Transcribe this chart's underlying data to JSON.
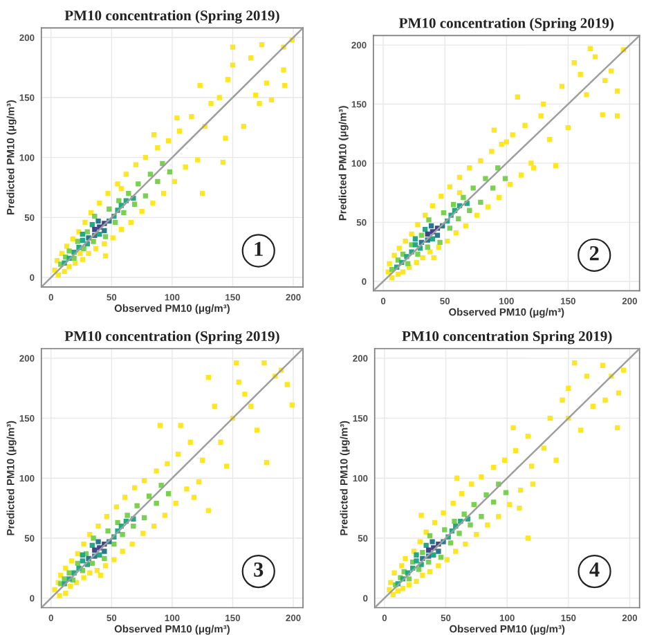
{
  "chart_data": [
    {
      "type": "scatter",
      "title": "PM10 concentration (Spring 2019)",
      "xlabel": "Observed PM10 (μg/m³)",
      "ylabel": "Predicted PM10 (μg/m³)",
      "xlim": [
        -8,
        208
      ],
      "ylim": [
        -8,
        208
      ],
      "xticks": [
        0,
        50,
        100,
        150,
        200
      ],
      "yticks": [
        0,
        50,
        100,
        150,
        200
      ],
      "grid": true,
      "marker": "square",
      "annotations": [
        "1"
      ],
      "series": [
        {
          "color": "#fde725",
          "x": [
            3,
            5,
            6,
            9,
            11,
            13,
            15,
            18,
            20,
            23,
            26,
            28,
            31,
            33,
            37,
            40,
            44,
            47,
            51,
            55,
            58,
            62,
            66,
            70,
            75,
            78,
            84,
            88,
            93,
            97,
            102,
            106,
            111,
            116,
            121,
            125,
            127,
            132,
            139,
            142,
            144,
            146,
            150,
            150,
            159,
            165,
            169,
            172,
            174,
            178,
            182,
            192,
            193,
            192,
            199,
            123,
            104,
            24,
            85,
            58,
            45
          ],
          "values": [
            6,
            14,
            2,
            20,
            5,
            26,
            9,
            32,
            12,
            38,
            15,
            46,
            20,
            54,
            24,
            62,
            28,
            70,
            33,
            78,
            40,
            86,
            46,
            94,
            55,
            100,
            62,
            108,
            70,
            114,
            80,
            122,
            92,
            134,
            98,
            70,
            126,
            145,
            150,
            96,
            116,
            165,
            177,
            192,
            126,
            183,
            152,
            145,
            194,
            162,
            148,
            173,
            160,
            192,
            198,
            160,
            133,
            20,
            119,
            74,
            18
          ]
        },
        {
          "color": "#7ad151",
          "x": [
            8,
            12,
            15,
            19,
            22,
            27,
            30,
            35,
            36,
            45,
            48,
            53,
            56,
            60,
            64,
            69,
            72,
            78,
            82,
            88,
            92,
            98
          ],
          "values": [
            11,
            17,
            22,
            16,
            30,
            24,
            38,
            30,
            51,
            34,
            57,
            46,
            64,
            54,
            70,
            61,
            78,
            68,
            86,
            80,
            95,
            88
          ]
        },
        {
          "color": "#22a884",
          "x": [
            11,
            15,
            19,
            23,
            26,
            30,
            26,
            34,
            40,
            52,
            55,
            58,
            62,
            68
          ],
          "values": [
            12,
            16,
            21,
            25,
            31,
            28,
            36,
            44,
            36,
            51,
            56,
            60,
            64,
            66
          ]
        },
        {
          "color": "#2a788e",
          "x": [
            31,
            36,
            39,
            44,
            48
          ],
          "values": [
            33,
            35,
            47,
            39,
            47
          ]
        },
        {
          "color": "#414487",
          "x": [
            36,
            40,
            44
          ],
          "values": [
            40,
            42,
            45
          ]
        },
        {
          "type": "line",
          "color": "#9e9e9e",
          "marker": "none",
          "line_style": "solid",
          "x": [
            -8,
            208
          ],
          "values": [
            -8,
            208
          ]
        }
      ]
    },
    {
      "type": "scatter",
      "title": "PM10 concentration (Spring 2019)",
      "xlabel": "Observed PM10 (μg/m³)",
      "ylabel": "Predicted PM10 (μg/m³)",
      "xlim": [
        -8,
        208
      ],
      "ylim": [
        -8,
        208
      ],
      "xticks": [
        0,
        50,
        100,
        150,
        200
      ],
      "yticks": [
        0,
        50,
        100,
        150,
        200
      ],
      "grid": true,
      "marker": "square",
      "annotations": [
        "2"
      ],
      "series": [
        {
          "color": "#fde725",
          "x": [
            4,
            5,
            7,
            9,
            12,
            13,
            16,
            18,
            21,
            23,
            27,
            28,
            32,
            34,
            38,
            40,
            45,
            47,
            52,
            54,
            59,
            62,
            67,
            70,
            76,
            79,
            85,
            88,
            94,
            96,
            103,
            105,
            112,
            115,
            122,
            168,
            190,
            190,
            178,
            109,
            90,
            41,
            155,
            145,
            160,
            185,
            195,
            172,
            130,
            120,
            135,
            140,
            150,
            165,
            180,
            128,
            100,
            62
          ],
          "values": [
            8,
            15,
            3,
            22,
            6,
            28,
            8,
            34,
            12,
            40,
            16,
            48,
            20,
            56,
            25,
            64,
            29,
            72,
            34,
            80,
            41,
            88,
            47,
            96,
            56,
            102,
            63,
            110,
            71,
            116,
            82,
            124,
            90,
            132,
            96,
            197,
            161,
            140,
            141,
            156,
            128,
            20,
            185,
            165,
            175,
            178,
            196,
            190,
            150,
            100,
            120,
            98,
            130,
            158,
            170,
            140,
            118,
            75
          ]
        },
        {
          "color": "#7ad151",
          "x": [
            7,
            12,
            16,
            20,
            23,
            28,
            31,
            36,
            37,
            46,
            49,
            54,
            57,
            61,
            65,
            70,
            73,
            79,
            83,
            89,
            93,
            99
          ],
          "values": [
            10,
            18,
            23,
            15,
            31,
            23,
            39,
            29,
            52,
            33,
            58,
            45,
            65,
            53,
            71,
            60,
            79,
            67,
            87,
            79,
            96,
            87
          ]
        },
        {
          "color": "#22a884",
          "x": [
            11,
            15,
            19,
            23,
            26,
            30,
            26,
            34,
            40,
            52,
            55,
            58,
            62,
            68
          ],
          "values": [
            12,
            16,
            21,
            25,
            31,
            28,
            36,
            44,
            36,
            51,
            56,
            60,
            64,
            66
          ]
        },
        {
          "color": "#2a788e",
          "x": [
            31,
            36,
            39,
            44,
            48
          ],
          "values": [
            33,
            35,
            47,
            39,
            47
          ]
        },
        {
          "color": "#414487",
          "x": [
            36,
            40,
            44
          ],
          "values": [
            40,
            42,
            45
          ]
        },
        {
          "type": "line",
          "color": "#9e9e9e",
          "marker": "none",
          "line_style": "solid",
          "x": [
            -8,
            208
          ],
          "values": [
            -8,
            208
          ]
        }
      ]
    },
    {
      "type": "scatter",
      "title": "PM10 concentration (Spring 2019)",
      "xlabel": "Observed PM10 (μg/m³)",
      "ylabel": "Predicted PM10 (μg/m³)",
      "xlim": [
        -8,
        208
      ],
      "ylim": [
        -8,
        208
      ],
      "xticks": [
        0,
        50,
        100,
        150,
        200
      ],
      "yticks": [
        0,
        50,
        100,
        150,
        200
      ],
      "grid": true,
      "marker": "square",
      "annotations": [
        "3"
      ],
      "series": [
        {
          "color": "#fde725",
          "x": [
            3,
            6,
            7,
            8,
            12,
            12,
            16,
            17,
            21,
            22,
            27,
            27,
            32,
            32,
            38,
            39,
            45,
            46,
            52,
            54,
            59,
            61,
            67,
            69,
            76,
            77,
            85,
            87,
            94,
            96,
            103,
            105,
            112,
            115,
            122,
            153,
            176,
            199,
            178,
            130,
            107,
            90,
            130,
            41,
            160,
            185,
            150,
            165,
            190,
            140,
            145,
            125,
            170,
            155,
            135,
            195,
            118
          ],
          "values": [
            7,
            13,
            2,
            19,
            4,
            25,
            10,
            31,
            13,
            37,
            17,
            45,
            21,
            53,
            23,
            60,
            27,
            68,
            32,
            76,
            39,
            84,
            45,
            92,
            54,
            98,
            60,
            106,
            69,
            112,
            79,
            120,
            91,
            130,
            97,
            196,
            196,
            161,
            113,
            184,
            144,
            144,
            73,
            19,
            170,
            185,
            150,
            160,
            190,
            130,
            110,
            115,
            140,
            180,
            160,
            178,
            84
          ]
        },
        {
          "color": "#7ad151",
          "x": [
            8,
            11,
            15,
            18,
            22,
            26,
            29,
            34,
            35,
            44,
            47,
            52,
            55,
            59,
            63,
            68,
            71,
            77,
            81,
            87,
            91,
            97
          ],
          "values": [
            12,
            16,
            21,
            15,
            29,
            23,
            37,
            29,
            50,
            33,
            56,
            45,
            63,
            53,
            69,
            60,
            77,
            67,
            85,
            79,
            94,
            87
          ]
        },
        {
          "color": "#22a884",
          "x": [
            11,
            15,
            19,
            23,
            26,
            30,
            26,
            34,
            40,
            52,
            55,
            58,
            62,
            68
          ],
          "values": [
            12,
            16,
            21,
            25,
            31,
            28,
            36,
            44,
            36,
            51,
            56,
            60,
            64,
            66
          ]
        },
        {
          "color": "#2a788e",
          "x": [
            31,
            36,
            39,
            44,
            48
          ],
          "values": [
            33,
            35,
            47,
            39,
            47
          ]
        },
        {
          "color": "#414487",
          "x": [
            36,
            40,
            44
          ],
          "values": [
            40,
            42,
            45
          ]
        },
        {
          "type": "line",
          "color": "#9e9e9e",
          "marker": "none",
          "line_style": "solid",
          "x": [
            -8,
            208
          ],
          "values": [
            -8,
            208
          ]
        }
      ]
    },
    {
      "type": "scatter",
      "title": "PM10 concentration Spring 2019)",
      "xlabel": "Observed PM10 (μg/m³)",
      "ylabel": "Predicted PM10 (μg/m³)",
      "xlim": [
        -8,
        208
      ],
      "ylim": [
        -8,
        208
      ],
      "xticks": [
        0,
        50,
        100,
        150,
        200
      ],
      "yticks": [
        0,
        50,
        100,
        150,
        200
      ],
      "grid": true,
      "marker": "square",
      "annotations": [
        "4"
      ],
      "series": [
        {
          "color": "#fde725",
          "x": [
            4,
            5,
            7,
            8,
            11,
            14,
            15,
            17,
            20,
            24,
            26,
            29,
            31,
            34,
            37,
            41,
            44,
            48,
            51,
            56,
            58,
            63,
            66,
            71,
            75,
            79,
            84,
            89,
            93,
            98,
            102,
            107,
            111,
            117,
            121,
            155,
            178,
            191,
            190,
            145,
            105,
            59,
            117,
            30,
            165,
            185,
            170,
            150,
            130,
            120,
            140,
            160,
            180,
            195,
            135,
            150,
            110
          ],
          "values": [
            7,
            13,
            3,
            21,
            6,
            27,
            8,
            33,
            11,
            39,
            14,
            47,
            19,
            55,
            22,
            63,
            27,
            71,
            32,
            79,
            39,
            87,
            45,
            95,
            53,
            101,
            61,
            109,
            68,
            115,
            78,
            123,
            90,
            135,
            95,
            196,
            194,
            171,
            142,
            165,
            142,
            100,
            50,
            69,
            185,
            185,
            160,
            150,
            125,
            110,
            115,
            140,
            165,
            190,
            150,
            175,
            75
          ]
        },
        {
          "color": "#7ad151",
          "x": [
            9,
            13,
            16,
            20,
            23,
            28,
            31,
            36,
            37,
            46,
            49,
            54,
            57,
            61,
            65,
            70,
            73,
            79,
            83,
            89,
            93,
            99
          ],
          "values": [
            11,
            17,
            22,
            16,
            30,
            24,
            38,
            30,
            52,
            34,
            57,
            46,
            64,
            54,
            70,
            61,
            78,
            68,
            86,
            80,
            95,
            88
          ]
        },
        {
          "color": "#22a884",
          "x": [
            11,
            15,
            19,
            23,
            26,
            30,
            26,
            34,
            40,
            52,
            55,
            58,
            62,
            68
          ],
          "values": [
            12,
            16,
            21,
            25,
            31,
            28,
            36,
            44,
            36,
            51,
            56,
            60,
            64,
            66
          ]
        },
        {
          "color": "#2a788e",
          "x": [
            31,
            36,
            39,
            44,
            48
          ],
          "values": [
            33,
            35,
            47,
            39,
            47
          ]
        },
        {
          "color": "#414487",
          "x": [
            36,
            40,
            44
          ],
          "values": [
            40,
            42,
            45
          ]
        },
        {
          "type": "line",
          "color": "#9e9e9e",
          "marker": "none",
          "line_style": "solid",
          "x": [
            -8,
            208
          ],
          "values": [
            -8,
            208
          ]
        }
      ]
    }
  ]
}
